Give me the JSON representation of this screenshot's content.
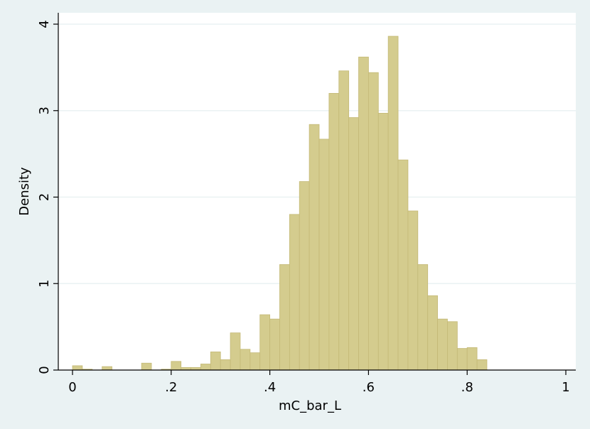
{
  "chart_data": {
    "type": "bar",
    "xlabel": "mC_bar_L",
    "ylabel": "Density",
    "xlim": [
      0,
      1
    ],
    "ylim": [
      0,
      4
    ],
    "grid": true,
    "bin_width": 0.02,
    "x_ticks": [
      {
        "value": 0,
        "label": "0"
      },
      {
        "value": 0.2,
        "label": ".2"
      },
      {
        "value": 0.4,
        "label": ".4"
      },
      {
        "value": 0.6,
        "label": ".6"
      },
      {
        "value": 0.8,
        "label": ".8"
      },
      {
        "value": 1,
        "label": "1"
      }
    ],
    "y_ticks": [
      {
        "value": 0,
        "label": "0"
      },
      {
        "value": 1,
        "label": "1"
      },
      {
        "value": 2,
        "label": "2"
      },
      {
        "value": 3,
        "label": "3"
      },
      {
        "value": 4,
        "label": "4"
      }
    ],
    "bins": [
      {
        "x": 0.0,
        "density": 0.05
      },
      {
        "x": 0.02,
        "density": 0.01
      },
      {
        "x": 0.06,
        "density": 0.04
      },
      {
        "x": 0.14,
        "density": 0.08
      },
      {
        "x": 0.18,
        "density": 0.01
      },
      {
        "x": 0.2,
        "density": 0.1
      },
      {
        "x": 0.22,
        "density": 0.03
      },
      {
        "x": 0.24,
        "density": 0.03
      },
      {
        "x": 0.26,
        "density": 0.07
      },
      {
        "x": 0.28,
        "density": 0.21
      },
      {
        "x": 0.3,
        "density": 0.12
      },
      {
        "x": 0.32,
        "density": 0.43
      },
      {
        "x": 0.34,
        "density": 0.24
      },
      {
        "x": 0.36,
        "density": 0.2
      },
      {
        "x": 0.38,
        "density": 0.64
      },
      {
        "x": 0.4,
        "density": 0.59
      },
      {
        "x": 0.42,
        "density": 1.22
      },
      {
        "x": 0.44,
        "density": 1.8
      },
      {
        "x": 0.46,
        "density": 2.18
      },
      {
        "x": 0.48,
        "density": 2.84
      },
      {
        "x": 0.5,
        "density": 2.67
      },
      {
        "x": 0.52,
        "density": 3.2
      },
      {
        "x": 0.54,
        "density": 3.46
      },
      {
        "x": 0.56,
        "density": 2.92
      },
      {
        "x": 0.58,
        "density": 3.62
      },
      {
        "x": 0.6,
        "density": 3.44
      },
      {
        "x": 0.62,
        "density": 2.97
      },
      {
        "x": 0.64,
        "density": 3.86
      },
      {
        "x": 0.66,
        "density": 2.43
      },
      {
        "x": 0.68,
        "density": 1.84
      },
      {
        "x": 0.7,
        "density": 1.22
      },
      {
        "x": 0.72,
        "density": 0.86
      },
      {
        "x": 0.74,
        "density": 0.59
      },
      {
        "x": 0.76,
        "density": 0.56
      },
      {
        "x": 0.78,
        "density": 0.25
      },
      {
        "x": 0.8,
        "density": 0.26
      },
      {
        "x": 0.82,
        "density": 0.12
      }
    ],
    "colors": {
      "background": "#eaf2f3",
      "plot_background": "#ffffff",
      "bar_fill": "#d4cc8e",
      "bar_stroke": "#c4b977",
      "grid": "#eaf2f3",
      "axis": "#000000"
    }
  }
}
